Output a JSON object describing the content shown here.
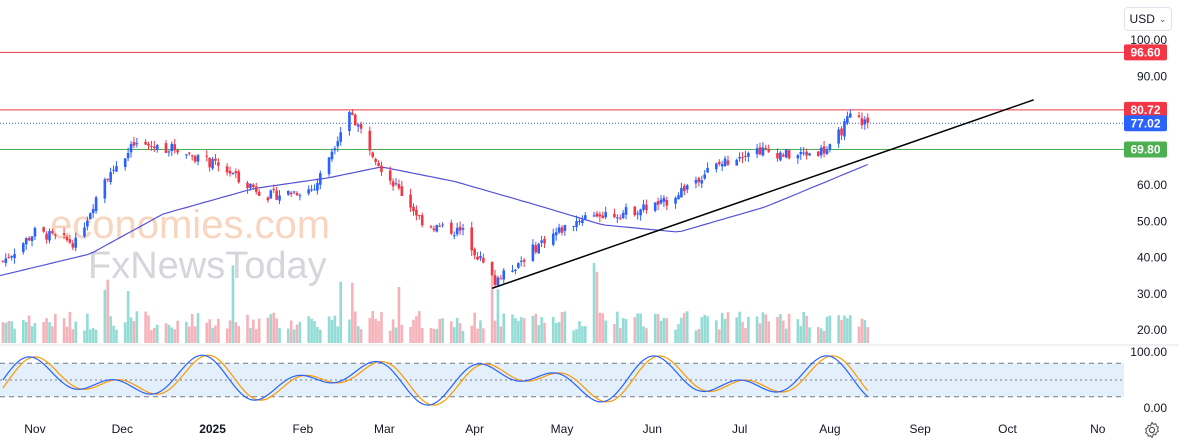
{
  "currency": {
    "label": "USD"
  },
  "watermark": {
    "line1": "economies.com",
    "line2": "FxNewsToday"
  },
  "price_axis": {
    "ticks": [
      "100.00",
      "90.00",
      "80.00",
      "70.00",
      "60.00",
      "50.00",
      "40.00",
      "30.00",
      "20.00"
    ],
    "tick_values": [
      100,
      90,
      80,
      70,
      60,
      50,
      40,
      30,
      20
    ]
  },
  "osc_axis": {
    "ticks": [
      "100.00",
      "0.00"
    ]
  },
  "time_axis": {
    "labels": [
      "Nov",
      "Dec",
      "2025",
      "Feb",
      "Mar",
      "Apr",
      "May",
      "Jun",
      "Jul",
      "Aug",
      "Sep",
      "Oct",
      "No"
    ],
    "bold_label": "2025"
  },
  "levels": [
    {
      "value": 96.6,
      "label": "96.60",
      "color": "#f23645"
    },
    {
      "value": 80.72,
      "label": "80.72",
      "color": "#f23645"
    },
    {
      "value": 77.02,
      "label": "77.02",
      "color": "#2962ff",
      "style": "dotted"
    },
    {
      "value": 69.8,
      "label": "69.80",
      "color": "#4caf50"
    }
  ],
  "colors": {
    "up": "#2962ff",
    "down": "#f23645",
    "ma": "#5552d6",
    "trendline": "#000000",
    "osc_k": "#2962ff",
    "osc_d": "#ff9800",
    "osc_band": "#e3f0fb"
  },
  "chart_data": {
    "type": "candlestick",
    "title": "",
    "ylim": [
      18,
      104
    ],
    "x_range": [
      "2024-10-20",
      "2025-11-10"
    ],
    "candles_anchor_ohlc": [
      {
        "date": "2024-10-21",
        "close": 39
      },
      {
        "date": "2024-11-01",
        "close": 47
      },
      {
        "date": "2024-11-15",
        "close": 44
      },
      {
        "date": "2024-11-25",
        "close": 62
      },
      {
        "date": "2024-12-05",
        "close": 71
      },
      {
        "date": "2024-12-20",
        "close": 70
      },
      {
        "date": "2025-01-06",
        "close": 64
      },
      {
        "date": "2025-01-20",
        "close": 57
      },
      {
        "date": "2025-02-05",
        "close": 59
      },
      {
        "date": "2025-02-17",
        "close": 80.5
      },
      {
        "date": "2025-02-28",
        "close": 65
      },
      {
        "date": "2025-03-15",
        "close": 49
      },
      {
        "date": "2025-03-28",
        "close": 47
      },
      {
        "date": "2025-04-08",
        "close": 33
      },
      {
        "date": "2025-04-25",
        "close": 45
      },
      {
        "date": "2025-05-10",
        "close": 52
      },
      {
        "date": "2025-05-20",
        "close": 52
      },
      {
        "date": "2025-06-05",
        "close": 55
      },
      {
        "date": "2025-06-20",
        "close": 64
      },
      {
        "date": "2025-07-05",
        "close": 70
      },
      {
        "date": "2025-07-20",
        "close": 68
      },
      {
        "date": "2025-08-01",
        "close": 70
      },
      {
        "date": "2025-08-08",
        "close": 79
      },
      {
        "date": "2025-08-14",
        "close": 77
      }
    ],
    "moving_average": [
      {
        "date": "2024-10-20",
        "value": 35
      },
      {
        "date": "2024-11-20",
        "value": 41
      },
      {
        "date": "2024-12-15",
        "value": 52
      },
      {
        "date": "2025-01-15",
        "value": 59
      },
      {
        "date": "2025-02-10",
        "value": 62
      },
      {
        "date": "2025-02-28",
        "value": 65
      },
      {
        "date": "2025-03-25",
        "value": 61
      },
      {
        "date": "2025-04-20",
        "value": 55
      },
      {
        "date": "2025-05-15",
        "value": 49
      },
      {
        "date": "2025-06-10",
        "value": 47
      },
      {
        "date": "2025-07-10",
        "value": 54
      },
      {
        "date": "2025-07-31",
        "value": 61
      },
      {
        "date": "2025-08-15",
        "value": 66
      }
    ],
    "trendline": [
      {
        "date": "2025-04-07",
        "value": 31.5
      },
      {
        "date": "2025-10-10",
        "value": 83.5
      }
    ],
    "volume_relative": "scaled 0-1 with spikes near Nov, Feb, Apr and May",
    "oscillator": {
      "ylim": [
        0,
        100
      ],
      "upper_band": 80,
      "lower_band": 20
    },
    "x_tick_dates": [
      "2024-11-01",
      "2024-12-01",
      "2025-01-01",
      "2025-02-01",
      "2025-03-01",
      "2025-04-01",
      "2025-05-01",
      "2025-06-01",
      "2025-07-01",
      "2025-08-01",
      "2025-09-01",
      "2025-10-01",
      "2025-11-01"
    ]
  }
}
